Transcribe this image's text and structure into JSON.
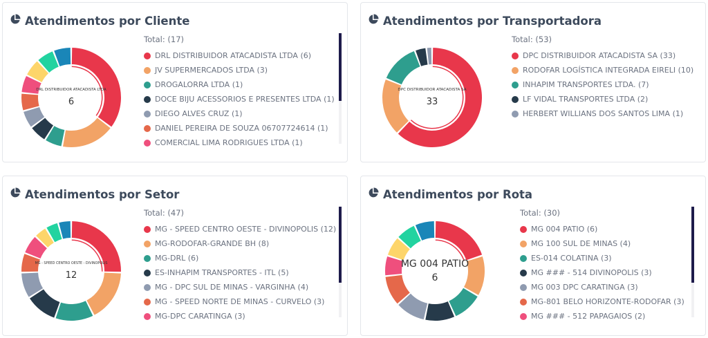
{
  "palette": [
    "#e8374b",
    "#f2a366",
    "#2e9e8e",
    "#263a4a",
    "#8f9bb0",
    "#e5684a",
    "#ef4f7d",
    "#fdd56a",
    "#22d3a0",
    "#1a86b8"
  ],
  "panels": [
    {
      "title": "Atendimentos por Cliente",
      "title_icon": "pie-chart-icon",
      "total_text": "Total: (17)",
      "center_name": "DRL DISTRIBUIDOR ATACADISTA LTDA",
      "center_value": "6",
      "scroll": true,
      "legend_labels": [
        "DRL DISTRIBUIDOR ATACADISTA LTDA (6)",
        "JV SUPERMERCADOS LTDA (3)",
        "DROGALORRA LTDA (1)",
        "DOCE BIJU ACESSORIOS E PRESENTES LTDA (1)",
        "DIEGO ALVES CRUZ (1)",
        "DANIEL PEREIRA DE SOUZA 06707724614 (1)",
        "COMERCIAL LIMA RODRIGUES LTDA (1)"
      ],
      "chart_data": {
        "type": "pie",
        "categories": [
          "DRL DISTRIBUIDOR ATACADISTA LTDA",
          "JV SUPERMERCADOS LTDA",
          "DROGALORRA LTDA",
          "DOCE BIJU ACESSORIOS E PRESENTES LTDA",
          "DIEGO ALVES CRUZ",
          "DANIEL PEREIRA DE SOUZA 06707724614",
          "COMERCIAL LIMA RODRIGUES LTDA",
          "",
          "",
          ""
        ],
        "values": [
          6,
          3,
          1,
          1,
          1,
          1,
          1,
          1,
          1,
          1
        ]
      }
    },
    {
      "title": "Atendimentos por Transportadora",
      "title_icon": "pie-chart-icon",
      "total_text": "Total: (53)",
      "center_name": "DPC DISTRIBUIDOR ATACADISTA SA",
      "center_value": "33",
      "scroll": false,
      "legend_labels": [
        "DPC DISTRIBUIDOR ATACADISTA SA (33)",
        "RODOFAR LOGÍSTICA INTEGRADA EIRELI (10)",
        "INHAPIM TRANSPORTES LTDA. (7)",
        "LF VIDAL TRANSPORTES LTDA (2)",
        "HERBERT WILLIANS DOS SANTOS LIMA (1)"
      ],
      "chart_data": {
        "type": "pie",
        "categories": [
          "DPC DISTRIBUIDOR ATACADISTA SA",
          "RODOFAR LOGÍSTICA INTEGRADA EIRELI",
          "INHAPIM TRANSPORTES LTDA.",
          "LF VIDAL TRANSPORTES LTDA",
          "HERBERT WILLIANS DOS SANTOS LIMA"
        ],
        "values": [
          33,
          10,
          7,
          2,
          1
        ]
      }
    },
    {
      "title": "Atendimentos por Setor",
      "title_icon": "pie-chart-icon",
      "total_text": "Total: (47)",
      "center_name": "MG - SPEED CENTRO OESTE - DIVINOPOLIS",
      "center_value": "12",
      "scroll": true,
      "legend_labels": [
        "MG - SPEED CENTRO OESTE - DIVINOPOLIS (12)",
        "MG-RODOFAR-GRANDE BH (8)",
        "MG-DRL (6)",
        "ES-INHAPIM TRANSPORTES - ITL (5)",
        "MG - DPC SUL DE MINAS - VARGINHA (4)",
        "MG - SPEED NORTE DE MINAS - CURVELO (3)",
        "MG-DPC CARATINGA (3)"
      ],
      "chart_data": {
        "type": "pie",
        "categories": [
          "MG - SPEED CENTRO OESTE - DIVINOPOLIS",
          "MG-RODOFAR-GRANDE BH",
          "MG-DRL",
          "ES-INHAPIM TRANSPORTES - ITL",
          "MG - DPC SUL DE MINAS - VARGINHA",
          "MG - SPEED NORTE DE MINAS - CURVELO",
          "MG-DPC CARATINGA",
          "",
          "",
          ""
        ],
        "values": [
          12,
          8,
          6,
          5,
          4,
          3,
          3,
          2,
          2,
          2
        ]
      }
    },
    {
      "title": "Atendimentos por Rota",
      "title_icon": "pie-chart-icon",
      "total_text": "Total: (30)",
      "center_name": "MG 004 PATIO",
      "center_value": "6",
      "scroll": true,
      "legend_labels": [
        "MG 004 PATIO (6)",
        "MG 100 SUL DE MINAS (4)",
        "ES-014 COLATINA (3)",
        "MG ### - 514 DIVINOPOLIS (3)",
        "MG 003 DPC CARATINGA (3)",
        "MG-801 BELO HORIZONTE-RODOFAR (3)",
        "MG ### - 512 PAPAGAIOS (2)"
      ],
      "chart_data": {
        "type": "pie",
        "categories": [
          "MG 004 PATIO",
          "MG 100 SUL DE MINAS",
          "ES-014 COLATINA",
          "MG ### - 514 DIVINOPOLIS",
          "MG 003 DPC CARATINGA",
          "MG-801 BELO HORIZONTE-RODOFAR",
          "MG ### - 512 PAPAGAIOS",
          "",
          "",
          ""
        ],
        "values": [
          6,
          4,
          3,
          3,
          3,
          3,
          2,
          2,
          2,
          2
        ]
      }
    }
  ]
}
